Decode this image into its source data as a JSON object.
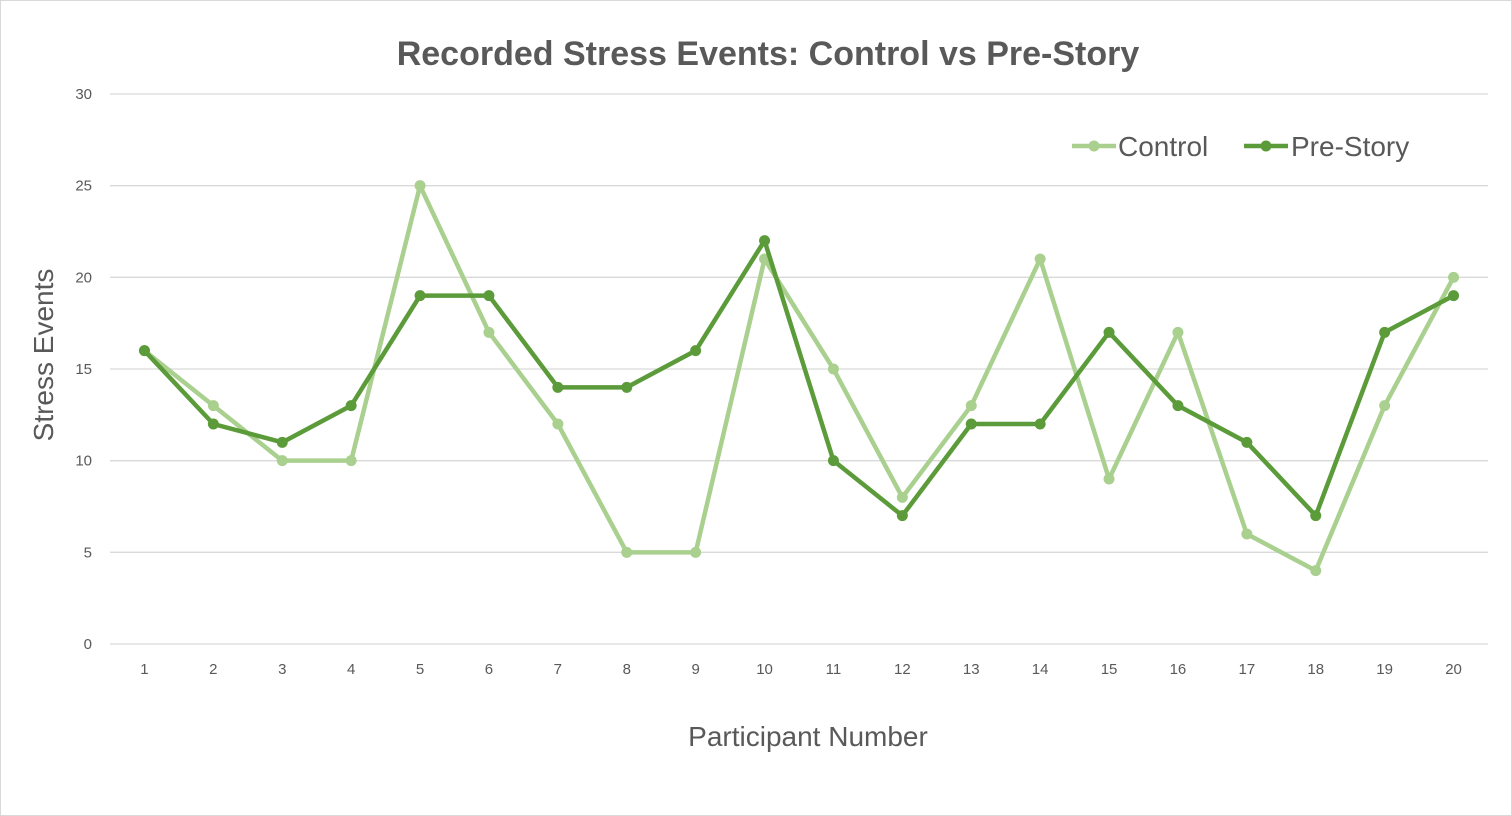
{
  "chart_data": {
    "type": "line",
    "title": "Recorded Stress Events: Control vs Pre-Story",
    "xlabel": "Participant Number",
    "ylabel": "Stress Events",
    "x": [
      "1",
      "2",
      "3",
      "4",
      "5",
      "6",
      "7",
      "8",
      "9",
      "10",
      "11",
      "12",
      "13",
      "14",
      "15",
      "16",
      "17",
      "18",
      "19",
      "20"
    ],
    "ylim": [
      0,
      30
    ],
    "yticks": [
      "0",
      "5",
      "10",
      "15",
      "20",
      "25",
      "30"
    ],
    "grid": true,
    "legend_position": "top-right",
    "series": [
      {
        "name": "Control",
        "color": "#a9d08e",
        "values": [
          16,
          13,
          10,
          10,
          25,
          17,
          12,
          5,
          5,
          21,
          15,
          8,
          13,
          21,
          9,
          17,
          6,
          4,
          13,
          20
        ]
      },
      {
        "name": "Pre-Story",
        "color": "#5b9b3a",
        "values": [
          16,
          12,
          11,
          13,
          19,
          19,
          14,
          14,
          16,
          22,
          10,
          7,
          12,
          12,
          17,
          13,
          11,
          7,
          17,
          19
        ]
      }
    ]
  }
}
